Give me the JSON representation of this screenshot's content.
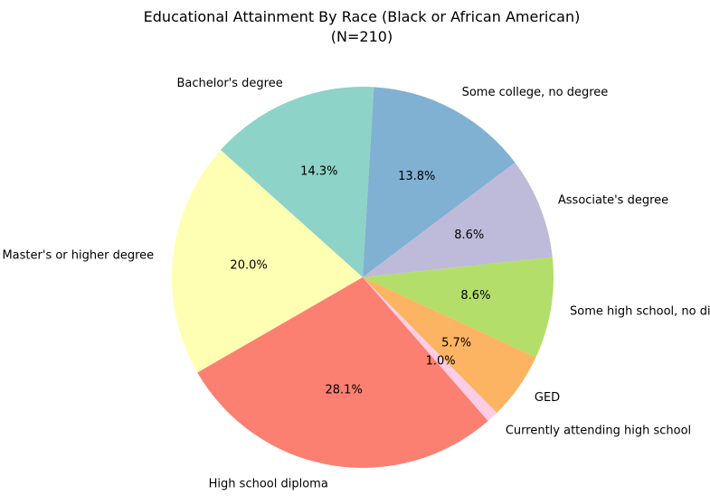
{
  "chart_data": {
    "type": "pie",
    "title": "Educational Attainment By Race (Black or African American)",
    "subtitle": "(N=210)",
    "slices": [
      {
        "label": "Master's or higher degree",
        "value": 20.0,
        "pct_label": "20.0%",
        "color": "#ffffb3"
      },
      {
        "label": "Bachelor's degree",
        "value": 14.3,
        "pct_label": "14.3%",
        "color": "#8dd3c7"
      },
      {
        "label": "Some college, no degree",
        "value": 13.8,
        "pct_label": "13.8%",
        "color": "#80b1d3"
      },
      {
        "label": "Associate's degree",
        "value": 8.6,
        "pct_label": "8.6%",
        "color": "#bebada"
      },
      {
        "label": "Some high school, no diploma",
        "value": 8.6,
        "pct_label": "8.6%",
        "color": "#b3de69"
      },
      {
        "label": "GED",
        "value": 5.7,
        "pct_label": "5.7%",
        "color": "#fdb462"
      },
      {
        "label": "Currently attending high school",
        "value": 1.0,
        "pct_label": "1.0%",
        "color": "#fccde5"
      },
      {
        "label": "High school diploma",
        "value": 28.1,
        "pct_label": "28.1%",
        "color": "#fb8072"
      }
    ]
  }
}
